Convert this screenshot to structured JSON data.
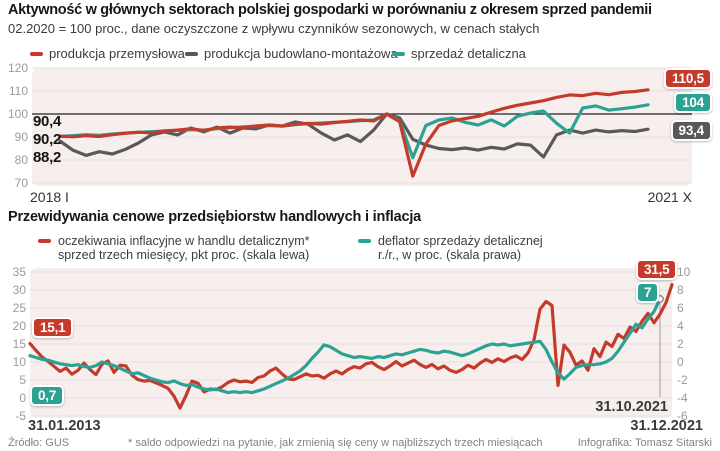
{
  "colors": {
    "red": "#c43b2c",
    "teal": "#2ba293",
    "gray": "#595959",
    "plot_bg": "#f7efee",
    "grid": "#eadedd",
    "baseline": "#222222",
    "annotation": "#9b9b9b"
  },
  "footer": {
    "source": "Źródło: GUS",
    "footnote": "* saldo odpowiedzi na pytanie, jak zmienią się ceny w najbliższych trzech miesiącach",
    "credit": "Infografika: Tomasz Sitarski"
  },
  "chart_data": [
    {
      "type": "line",
      "title": "Aktywność w głównych sektorach polskiej gospodarki w porównaniu z okresem sprzed pandemii",
      "subtitle": "02.2020 = 100 proc., dane oczyszczone z wpływu czynników sezonowych, w cenach stałych",
      "x_start_label": "2018 I",
      "x_end_label": "2021 X",
      "ylim": [
        70,
        120
      ],
      "y_ticks": [
        "120",
        "110",
        "100",
        "90",
        "80",
        "70"
      ],
      "baseline_value": 100,
      "grid": "on",
      "legend_position": "top",
      "start_value_labels": [
        "90,4",
        "90,2",
        "88,2"
      ],
      "end_badges": [
        {
          "text": "110,5",
          "color": "red"
        },
        {
          "text": "104",
          "color": "teal"
        },
        {
          "text": "93,4",
          "color": "gray"
        }
      ],
      "legend": [
        {
          "label": "produkcja przemysłowa",
          "color": "red"
        },
        {
          "label": "produkcja budowlano-montażowa",
          "color": "gray"
        },
        {
          "label": "sprzedaż detaliczna",
          "color": "teal"
        }
      ],
      "x_note": "monthly, 2018-01 to 2021-10, index 02.2020 = 100",
      "series": [
        {
          "id": "produkcja-przemyslowa",
          "name": "produkcja przemysłowa",
          "color": "red",
          "values": [
            90.4,
            90.1,
            90.6,
            90.2,
            91.0,
            91.6,
            92.1,
            91.8,
            92.6,
            93.0,
            93.6,
            92.8,
            93.9,
            94.3,
            94.0,
            94.8,
            95.2,
            94.7,
            95.5,
            95.9,
            95.6,
            96.3,
            96.8,
            97.4,
            97.0,
            100.0,
            96.6,
            73.0,
            87.0,
            95.0,
            97.0,
            98.0,
            99.0,
            100.8,
            102.5,
            103.8,
            104.8,
            105.8,
            107.2,
            108.3,
            108.0,
            109.0,
            108.4,
            109.4,
            109.8,
            110.5
          ]
        },
        {
          "id": "produkcja-budowlano-montazowa",
          "name": "produkcja budowlano-montażowa",
          "color": "gray",
          "values": [
            88.2,
            84.2,
            82.0,
            83.6,
            82.6,
            84.6,
            87.4,
            90.9,
            92.2,
            90.9,
            93.9,
            92.2,
            94.3,
            91.7,
            93.9,
            93.5,
            95.2,
            94.8,
            96.5,
            95.5,
            91.7,
            88.7,
            90.9,
            88.0,
            93.0,
            100.0,
            98.3,
            89.0,
            86.5,
            85.0,
            84.5,
            85.2,
            84.3,
            85.5,
            84.8,
            87.0,
            86.5,
            81.3,
            90.9,
            93.0,
            91.7,
            93.0,
            92.2,
            92.8,
            92.4,
            93.4
          ]
        },
        {
          "id": "sprzedaz-detaliczna",
          "name": "sprzedaż detaliczna",
          "color": "teal",
          "values": [
            90.2,
            90.6,
            91.0,
            90.7,
            91.3,
            91.7,
            92.0,
            92.3,
            92.6,
            92.9,
            93.2,
            93.0,
            93.6,
            94.0,
            94.4,
            94.7,
            95.0,
            94.8,
            95.4,
            95.8,
            96.1,
            96.4,
            96.7,
            97.1,
            97.4,
            100.0,
            97.0,
            81.0,
            95.0,
            97.4,
            98.3,
            96.4,
            95.2,
            97.5,
            94.8,
            99.0,
            100.4,
            101.3,
            96.0,
            91.7,
            102.6,
            103.5,
            101.7,
            102.3,
            103.0,
            104.0
          ]
        }
      ]
    },
    {
      "type": "line",
      "title": "Przewidywania cenowe przedsiębiorstw handlowych i inflacja",
      "left_ticks": [
        "35",
        "30",
        "25",
        "20",
        "15",
        "10",
        "5",
        "0",
        "-5"
      ],
      "right_ticks": [
        "10",
        "8",
        "6",
        "4",
        "2",
        "0",
        "-2",
        "-4",
        "-6"
      ],
      "left_lim": [
        -5,
        35
      ],
      "right_lim": [
        -6,
        10
      ],
      "grid": "on",
      "legend_position": "top",
      "x_labels": {
        "start": "31.01.2013",
        "end": "31.12.2021"
      },
      "annotation": {
        "label": "31.10.2021"
      },
      "start_badges": [
        {
          "text": "15,1",
          "color": "red"
        },
        {
          "text": "0,7",
          "color": "teal"
        }
      ],
      "end_badges": [
        {
          "text": "31,5",
          "color": "red"
        },
        {
          "text": "7",
          "color": "teal"
        }
      ],
      "legend": [
        {
          "line1": "oczekiwania inflacyjne w handlu detalicznym*",
          "line2": "sprzed trzech miesięcy, pkt proc. (skala lewa)",
          "color": "red"
        },
        {
          "line1": "deflator sprzedaży detalicznej",
          "line2": "r./r., w proc. (skala prawa)",
          "color": "teal"
        }
      ],
      "x_note": "monthly, 2013-01 to 2021-12 (red) / to 2021-10 (teal)",
      "series": [
        {
          "id": "oczekiwania-inflacyjne",
          "name": "oczekiwania inflacyjne w handlu detalicznym, pkt proc.",
          "color": "red",
          "axis": "left",
          "values": [
            15.1,
            13.2,
            11.4,
            10.2,
            8.8,
            7.4,
            8.3,
            6.6,
            7.7,
            9.7,
            7.9,
            6.5,
            9.4,
            10.3,
            7.1,
            9.1,
            8.9,
            6.3,
            5.1,
            4.7,
            4.9,
            4.2,
            3.5,
            2.7,
            0.5,
            -2.8,
            0.7,
            4.7,
            4.1,
            1.7,
            2.5,
            2.3,
            3.1,
            4.3,
            5.0,
            4.5,
            4.7,
            4.3,
            5.7,
            6.1,
            7.5,
            8.3,
            6.7,
            5.3,
            5.1,
            5.9,
            6.7,
            6.1,
            6.3,
            5.5,
            6.7,
            7.5,
            6.7,
            7.9,
            8.7,
            8.3,
            9.5,
            9.9,
            8.7,
            7.9,
            8.9,
            10.1,
            8.9,
            9.7,
            10.5,
            9.3,
            8.5,
            9.3,
            8.1,
            8.9,
            7.7,
            7.1,
            7.9,
            9.1,
            8.3,
            9.7,
            10.7,
            9.9,
            10.9,
            10.1,
            11.1,
            11.7,
            10.7,
            12.5,
            16.1,
            24.7,
            26.8,
            25.7,
            3.5,
            14.7,
            12.7,
            9.1,
            10.3,
            7.7,
            13.7,
            11.5,
            15.5,
            14.3,
            17.7,
            16.5,
            19.7,
            18.5,
            21.3,
            23.5,
            20.9,
            23.3,
            26.5,
            31.5
          ]
        },
        {
          "id": "deflator-sprzedazy",
          "name": "deflator sprzedaży detalicznej r./r., proc.",
          "color": "teal",
          "axis": "right",
          "values": [
            0.7,
            0.5,
            0.3,
            0.2,
            0.0,
            -0.2,
            -0.3,
            -0.4,
            -0.3,
            -0.5,
            -0.6,
            -0.4,
            0.0,
            -0.2,
            -0.4,
            -0.7,
            -1.0,
            -1.3,
            -1.2,
            -1.5,
            -1.8,
            -2.0,
            -2.2,
            -2.3,
            -2.1,
            -2.4,
            -2.6,
            -2.5,
            -2.8,
            -3.0,
            -3.1,
            -3.0,
            -3.2,
            -3.4,
            -3.3,
            -3.4,
            -3.3,
            -3.4,
            -3.2,
            -3.0,
            -2.7,
            -2.4,
            -2.1,
            -1.8,
            -1.4,
            -1.0,
            -0.4,
            0.4,
            1.1,
            1.9,
            1.7,
            1.3,
            0.9,
            0.7,
            0.5,
            0.6,
            0.5,
            0.4,
            0.6,
            0.5,
            0.7,
            0.9,
            0.8,
            1.0,
            1.2,
            1.4,
            1.3,
            1.1,
            1.0,
            1.2,
            1.1,
            0.9,
            0.7,
            0.9,
            1.2,
            1.5,
            1.8,
            2.0,
            1.9,
            2.0,
            1.8,
            1.9,
            2.0,
            2.1,
            2.2,
            2.3,
            1.4,
            0.0,
            -1.2,
            -1.9,
            -1.3,
            -0.6,
            -0.4,
            -0.3,
            -0.3,
            -0.2,
            0.0,
            0.4,
            1.2,
            2.2,
            3.2,
            4.2,
            3.8,
            4.8,
            5.6,
            7.0
          ]
        }
      ]
    }
  ]
}
